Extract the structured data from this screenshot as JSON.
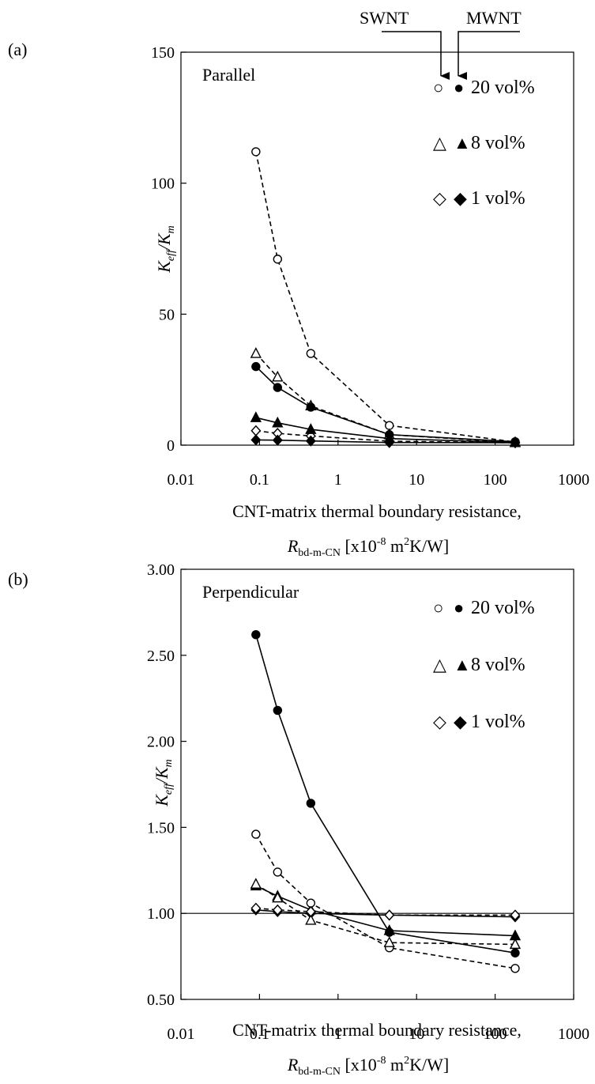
{
  "figure": {
    "swnt_label": "SWNT",
    "mwnt_label": "MWNT"
  },
  "chart_data": [
    {
      "panel_label": "(a)",
      "type": "line",
      "xscale": "log",
      "xlim": [
        0.01,
        1000
      ],
      "ylim": [
        0,
        150
      ],
      "x_ticks": [
        0.01,
        0.1,
        1,
        10,
        100,
        1000
      ],
      "x_tick_labels": [
        "0.01",
        "0.1",
        "1",
        "10",
        "100",
        "1000"
      ],
      "y_ticks": [
        0,
        50,
        100,
        150
      ],
      "y_tick_labels": [
        "0",
        "50",
        "100",
        "150"
      ],
      "ylabel_main": "K",
      "ylabel_sub1": "eff",
      "ylabel_sep": "/K",
      "ylabel_sub2": "m",
      "xlabel_line1": "CNT-matrix thermal boundary resistance,",
      "xlabel_R": "R",
      "xlabel_R_sub": "bd-m-CN",
      "xlabel_unit_a": " [x10",
      "xlabel_unit_exp1": "-8",
      "xlabel_unit_b": " m",
      "xlabel_unit_exp2": "2",
      "xlabel_unit_c": "K/W]",
      "annotation": "Parallel",
      "legend_position": "top-right",
      "legend": [
        {
          "open": "○",
          "filled": "●",
          "label": "20 vol%"
        },
        {
          "open": "△",
          "filled": "▲",
          "label": "8 vol%"
        },
        {
          "open": "◇",
          "filled": "◆",
          "label": "1 vol%"
        }
      ],
      "x": [
        0.09,
        0.17,
        0.45,
        4.5,
        180
      ],
      "series": [
        {
          "cnt": "SWNT",
          "vf": "20 vol%",
          "marker": "circle",
          "filled": false,
          "dashed": true,
          "values": [
            112,
            71,
            35,
            7.5,
            1.2
          ]
        },
        {
          "cnt": "SWNT",
          "vf": "8 vol%",
          "marker": "triangle",
          "filled": false,
          "dashed": true,
          "values": [
            35,
            26,
            15,
            4,
            1.0
          ]
        },
        {
          "cnt": "SWNT",
          "vf": "1 vol%",
          "marker": "diamond",
          "filled": false,
          "dashed": true,
          "values": [
            5.5,
            4.5,
            3.5,
            1.5,
            0.9
          ]
        },
        {
          "cnt": "MWNT",
          "vf": "20 vol%",
          "marker": "circle",
          "filled": true,
          "dashed": false,
          "values": [
            30,
            22,
            14.5,
            4,
            1.3
          ]
        },
        {
          "cnt": "MWNT",
          "vf": "8 vol%",
          "marker": "triangle",
          "filled": true,
          "dashed": false,
          "values": [
            10.5,
            8.5,
            6,
            2.5,
            1.0
          ]
        },
        {
          "cnt": "MWNT",
          "vf": "1 vol%",
          "marker": "diamond",
          "filled": true,
          "dashed": false,
          "values": [
            2.0,
            1.9,
            1.6,
            1.0,
            0.9
          ]
        }
      ]
    },
    {
      "panel_label": "(b)",
      "type": "line",
      "xscale": "log",
      "xlim": [
        0.01,
        1000
      ],
      "ylim": [
        0.5,
        3.0
      ],
      "x_ticks": [
        0.01,
        0.1,
        1,
        10,
        100,
        1000
      ],
      "x_tick_labels": [
        "0.01",
        "0.1",
        "1",
        "10",
        "100",
        "1000"
      ],
      "y_ticks": [
        0.5,
        1.0,
        1.5,
        2.0,
        2.5,
        3.0
      ],
      "y_tick_labels": [
        "0.50",
        "1.00",
        "1.50",
        "2.00",
        "2.50",
        "3.00"
      ],
      "reference_line": 1.0,
      "ylabel_main": "K",
      "ylabel_sub1": "eff",
      "ylabel_sep": "/K",
      "ylabel_sub2": "m",
      "xlabel_line1": "CNT-matrix thermal boundary resistance,",
      "xlabel_R": "R",
      "xlabel_R_sub": "bd-m-CN",
      "xlabel_unit_a": " [x10",
      "xlabel_unit_exp1": "-8",
      "xlabel_unit_b": " m",
      "xlabel_unit_exp2": "2",
      "xlabel_unit_c": "K/W]",
      "annotation": "Perpendicular",
      "legend_position": "top-right",
      "legend": [
        {
          "open": "○",
          "filled": "●",
          "label": "20 vol%"
        },
        {
          "open": "△",
          "filled": "▲",
          "label": "8 vol%"
        },
        {
          "open": "◇",
          "filled": "◆",
          "label": "1 vol%"
        }
      ],
      "x": [
        0.09,
        0.17,
        0.45,
        4.5,
        180
      ],
      "series": [
        {
          "cnt": "MWNT",
          "vf": "20 vol%",
          "marker": "circle",
          "filled": true,
          "dashed": false,
          "values": [
            2.62,
            2.18,
            1.64,
            0.89,
            0.77
          ]
        },
        {
          "cnt": "MWNT",
          "vf": "8 vol%",
          "marker": "triangle",
          "filled": true,
          "dashed": false,
          "values": [
            1.16,
            1.1,
            1.02,
            0.9,
            0.87
          ]
        },
        {
          "cnt": "MWNT",
          "vf": "1 vol%",
          "marker": "diamond",
          "filled": true,
          "dashed": false,
          "values": [
            1.02,
            1.01,
            1.0,
            0.99,
            0.98
          ]
        },
        {
          "cnt": "SWNT",
          "vf": "20 vol%",
          "marker": "circle",
          "filled": false,
          "dashed": true,
          "values": [
            1.46,
            1.24,
            1.06,
            0.8,
            0.68
          ]
        },
        {
          "cnt": "SWNT",
          "vf": "8 vol%",
          "marker": "triangle",
          "filled": false,
          "dashed": true,
          "values": [
            1.17,
            1.09,
            0.96,
            0.83,
            0.82
          ]
        },
        {
          "cnt": "SWNT",
          "vf": "1 vol%",
          "marker": "diamond",
          "filled": false,
          "dashed": true,
          "values": [
            1.03,
            1.02,
            1.01,
            0.99,
            0.99
          ]
        }
      ]
    }
  ]
}
